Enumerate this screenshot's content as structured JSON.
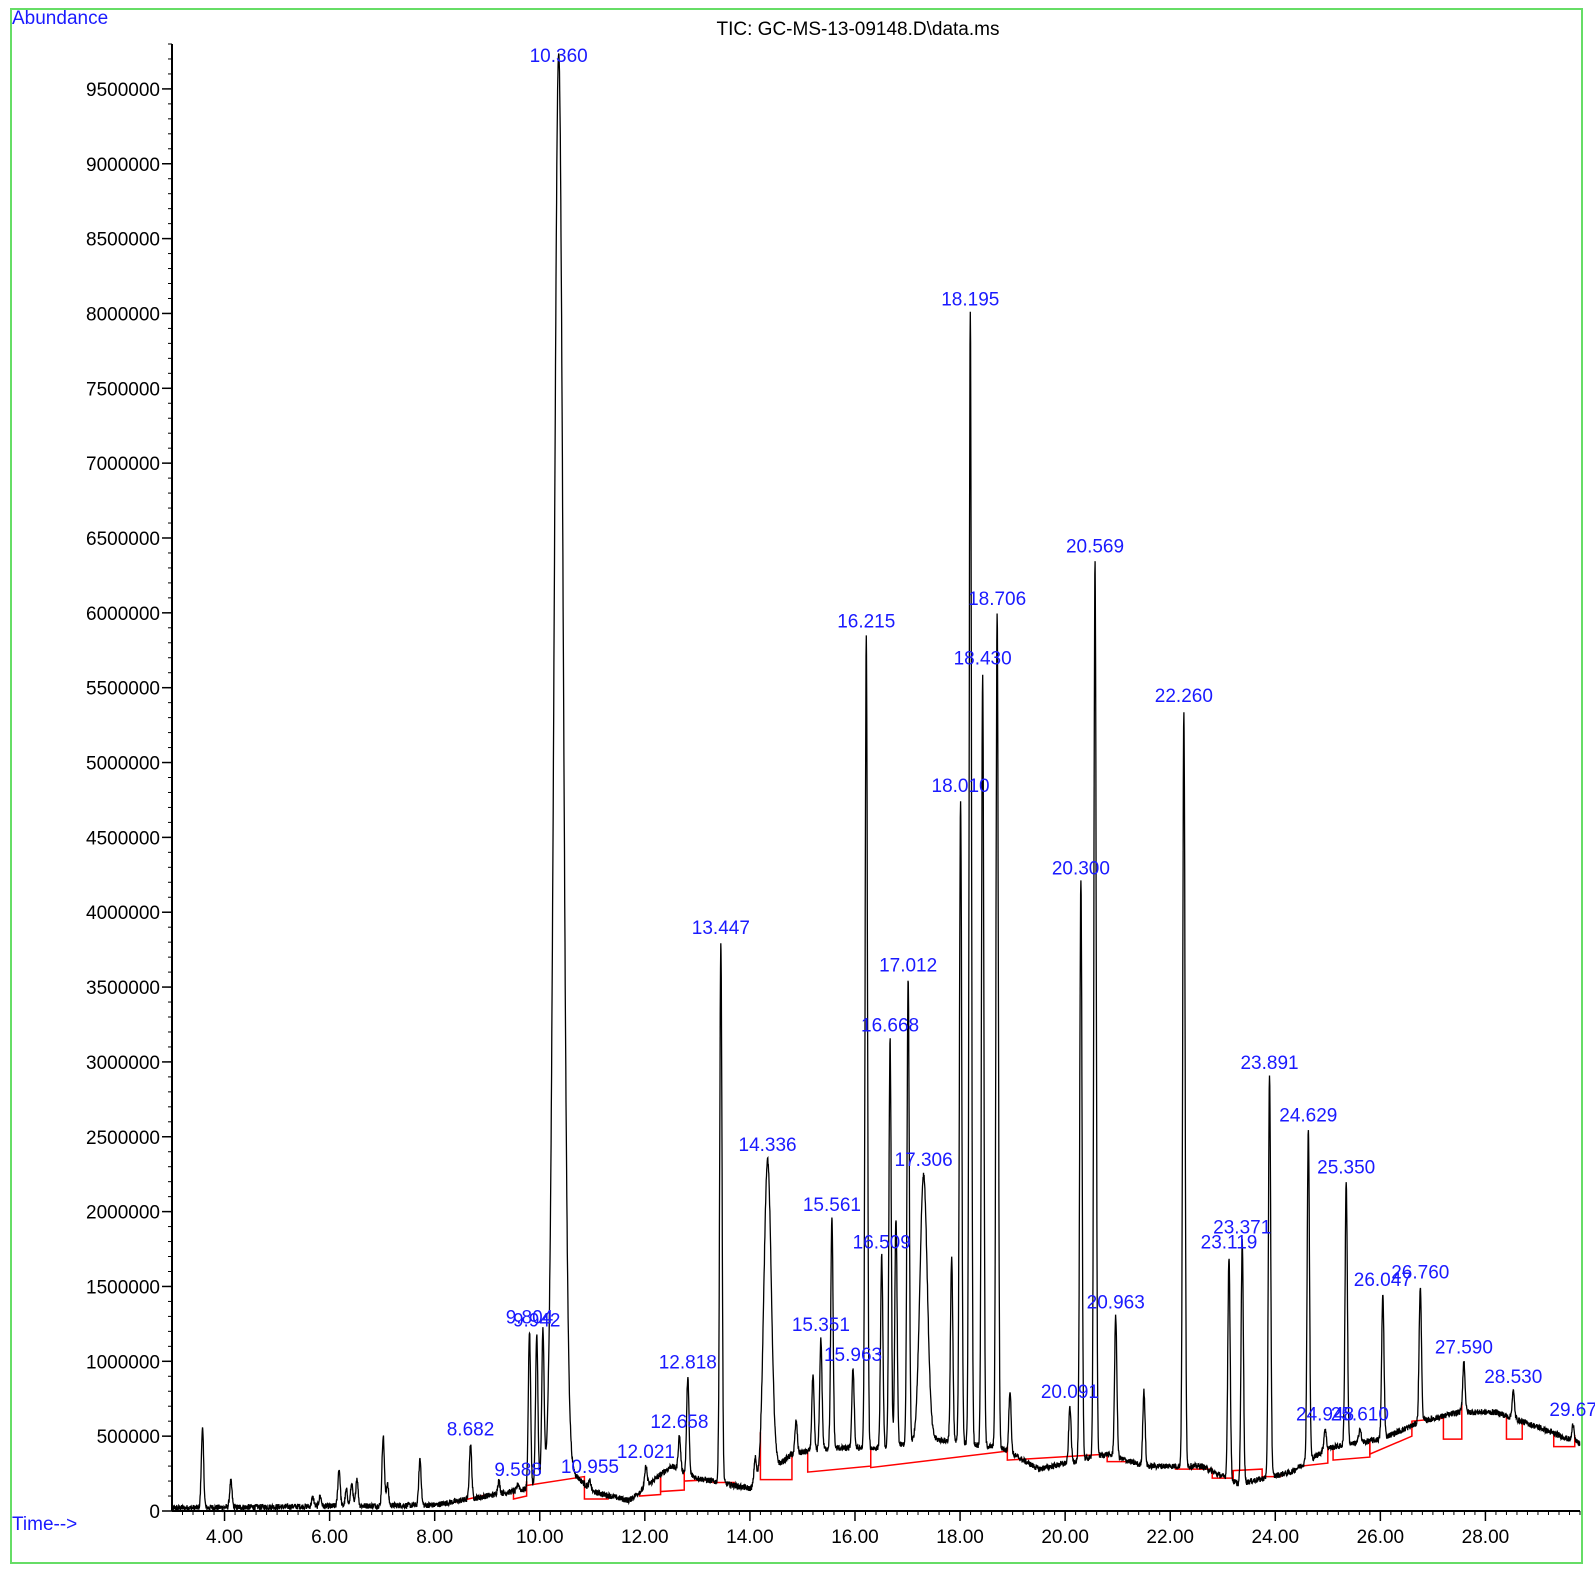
{
  "chart_data": {
    "type": "line",
    "title": "TIC: GC-MS-13-09148.D\\data.ms",
    "ylabel": "Abundance",
    "xlabel": "Time-->",
    "xlim": [
      3.0,
      29.8
    ],
    "ylim": [
      0,
      9800000
    ],
    "x_ticks": [
      4,
      6,
      8,
      10,
      12,
      14,
      16,
      18,
      20,
      22,
      24,
      26,
      28
    ],
    "x_tick_labels": [
      "4.00",
      "6.00",
      "8.00",
      "10.00",
      "12.00",
      "14.00",
      "16.00",
      "18.00",
      "20.00",
      "22.00",
      "24.00",
      "26.00",
      "28.00"
    ],
    "y_ticks": [
      0,
      500000,
      1000000,
      1500000,
      2000000,
      2500000,
      3000000,
      3500000,
      4000000,
      4500000,
      5000000,
      5500000,
      6000000,
      6500000,
      7000000,
      7500000,
      8000000,
      8500000,
      9000000,
      9500000
    ],
    "y_tick_labels": [
      "0",
      "500000",
      "1000000",
      "1500000",
      "2000000",
      "2500000",
      "3000000",
      "3500000",
      "4000000",
      "4500000",
      "5000000",
      "5500000",
      "6000000",
      "6500000",
      "7000000",
      "7500000",
      "8000000",
      "8500000",
      "9000000",
      "9500000"
    ],
    "grid": false,
    "colors": {
      "trace": "#000000",
      "baseline": "#ff0000",
      "labels": "#1a1aff",
      "frame": "#66dd66"
    },
    "peaks": [
      {
        "rt": 3.58,
        "height": 550000,
        "label": ""
      },
      {
        "rt": 4.12,
        "height": 200000,
        "label": ""
      },
      {
        "rt": 5.68,
        "height": 90000,
        "label": ""
      },
      {
        "rt": 5.82,
        "height": 100000,
        "label": ""
      },
      {
        "rt": 6.18,
        "height": 280000,
        "label": ""
      },
      {
        "rt": 6.32,
        "height": 140000,
        "label": ""
      },
      {
        "rt": 6.42,
        "height": 180000,
        "label": ""
      },
      {
        "rt": 6.52,
        "height": 220000,
        "label": ""
      },
      {
        "rt": 7.02,
        "height": 500000,
        "label": ""
      },
      {
        "rt": 7.1,
        "height": 180000,
        "label": ""
      },
      {
        "rt": 7.72,
        "height": 350000,
        "label": ""
      },
      {
        "rt": 8.682,
        "height": 450000,
        "label": "8.682"
      },
      {
        "rt": 9.22,
        "height": 200000,
        "label": ""
      },
      {
        "rt": 9.588,
        "height": 180000,
        "label": "9.588"
      },
      {
        "rt": 9.804,
        "height": 1200000,
        "label": "9.804"
      },
      {
        "rt": 9.942,
        "height": 1180000,
        "label": "9.942"
      },
      {
        "rt": 10.06,
        "height": 1200000,
        "label": ""
      },
      {
        "rt": 10.36,
        "height": 9750000,
        "label": "10.360"
      },
      {
        "rt": 10.955,
        "height": 200000,
        "label": "10.955"
      },
      {
        "rt": 12.021,
        "height": 300000,
        "label": "12.021"
      },
      {
        "rt": 12.658,
        "height": 500000,
        "label": "12.658"
      },
      {
        "rt": 12.818,
        "height": 900000,
        "label": "12.818"
      },
      {
        "rt": 13.447,
        "height": 3800000,
        "label": "13.447"
      },
      {
        "rt": 14.1,
        "height": 350000,
        "label": ""
      },
      {
        "rt": 14.336,
        "height": 2350000,
        "label": "14.336"
      },
      {
        "rt": 14.88,
        "height": 600000,
        "label": ""
      },
      {
        "rt": 15.2,
        "height": 900000,
        "label": ""
      },
      {
        "rt": 15.351,
        "height": 1150000,
        "label": "15.351"
      },
      {
        "rt": 15.561,
        "height": 1950000,
        "label": "15.561"
      },
      {
        "rt": 15.963,
        "height": 950000,
        "label": "15.963"
      },
      {
        "rt": 16.215,
        "height": 5850000,
        "label": "16.215"
      },
      {
        "rt": 16.509,
        "height": 1700000,
        "label": "16.509"
      },
      {
        "rt": 16.668,
        "height": 3150000,
        "label": "16.668"
      },
      {
        "rt": 16.78,
        "height": 1950000,
        "label": ""
      },
      {
        "rt": 17.012,
        "height": 3550000,
        "label": "17.012"
      },
      {
        "rt": 17.306,
        "height": 2250000,
        "label": "17.306"
      },
      {
        "rt": 17.84,
        "height": 1700000,
        "label": ""
      },
      {
        "rt": 18.01,
        "height": 4750000,
        "label": "18.010"
      },
      {
        "rt": 18.195,
        "height": 8000000,
        "label": "18.195"
      },
      {
        "rt": 18.43,
        "height": 5600000,
        "label": "18.430"
      },
      {
        "rt": 18.706,
        "height": 6000000,
        "label": "18.706"
      },
      {
        "rt": 18.95,
        "height": 800000,
        "label": ""
      },
      {
        "rt": 20.091,
        "height": 700000,
        "label": "20.091"
      },
      {
        "rt": 20.3,
        "height": 4200000,
        "label": "20.300"
      },
      {
        "rt": 20.569,
        "height": 6350000,
        "label": "20.569"
      },
      {
        "rt": 20.963,
        "height": 1300000,
        "label": "20.963"
      },
      {
        "rt": 21.5,
        "height": 800000,
        "label": ""
      },
      {
        "rt": 22.26,
        "height": 5350000,
        "label": "22.260"
      },
      {
        "rt": 23.119,
        "height": 1700000,
        "label": "23.119"
      },
      {
        "rt": 23.371,
        "height": 1800000,
        "label": "23.371"
      },
      {
        "rt": 23.891,
        "height": 2900000,
        "label": "23.891"
      },
      {
        "rt": 24.629,
        "height": 2550000,
        "label": "24.629"
      },
      {
        "rt": 24.948,
        "height": 550000,
        "label": "24.948"
      },
      {
        "rt": 25.35,
        "height": 2200000,
        "label": "25.350"
      },
      {
        "rt": 25.61,
        "height": 550000,
        "label": "25.610"
      },
      {
        "rt": 26.047,
        "height": 1450000,
        "label": "26.047"
      },
      {
        "rt": 26.76,
        "height": 1500000,
        "label": "26.760"
      },
      {
        "rt": 27.59,
        "height": 1000000,
        "label": "27.590"
      },
      {
        "rt": 28.53,
        "height": 800000,
        "label": "28.530"
      },
      {
        "rt": 29.67,
        "height": 580000,
        "label": "29.67"
      }
    ],
    "integration_baselines": [
      {
        "start": 8.4,
        "end": 9.0,
        "y_start": 60000,
        "y_end": 110000
      },
      {
        "start": 9.5,
        "end": 9.75,
        "y_start": 80000,
        "y_end": 100000
      },
      {
        "start": 9.75,
        "end": 10.85,
        "y_start": 170000,
        "y_end": 230000
      },
      {
        "start": 10.85,
        "end": 11.3,
        "y_start": 80000,
        "y_end": 80000
      },
      {
        "start": 11.9,
        "end": 12.3,
        "y_start": 100000,
        "y_end": 110000
      },
      {
        "start": 12.3,
        "end": 12.75,
        "y_start": 130000,
        "y_end": 140000
      },
      {
        "start": 12.75,
        "end": 13.3,
        "y_start": 200000,
        "y_end": 210000
      },
      {
        "start": 13.3,
        "end": 13.7,
        "y_start": 190000,
        "y_end": 190000
      },
      {
        "start": 14.2,
        "end": 14.8,
        "y_start": 210000,
        "y_end": 210000
      },
      {
        "start": 15.1,
        "end": 16.3,
        "y_start": 260000,
        "y_end": 300000
      },
      {
        "start": 16.3,
        "end": 18.9,
        "y_start": 290000,
        "y_end": 400000
      },
      {
        "start": 18.9,
        "end": 20.8,
        "y_start": 340000,
        "y_end": 380000
      },
      {
        "start": 20.8,
        "end": 21.3,
        "y_start": 330000,
        "y_end": 330000
      },
      {
        "start": 22.1,
        "end": 22.8,
        "y_start": 280000,
        "y_end": 280000
      },
      {
        "start": 22.8,
        "end": 23.2,
        "y_start": 220000,
        "y_end": 220000
      },
      {
        "start": 23.2,
        "end": 23.75,
        "y_start": 270000,
        "y_end": 280000
      },
      {
        "start": 23.75,
        "end": 24.1,
        "y_start": 230000,
        "y_end": 230000
      },
      {
        "start": 24.5,
        "end": 25.0,
        "y_start": 300000,
        "y_end": 320000
      },
      {
        "start": 25.1,
        "end": 25.8,
        "y_start": 340000,
        "y_end": 360000
      },
      {
        "start": 25.8,
        "end": 26.6,
        "y_start": 380000,
        "y_end": 500000
      },
      {
        "start": 26.6,
        "end": 27.2,
        "y_start": 600000,
        "y_end": 620000
      },
      {
        "start": 27.2,
        "end": 27.55,
        "y_start": 480000,
        "y_end": 480000
      },
      {
        "start": 28.4,
        "end": 28.7,
        "y_start": 480000,
        "y_end": 480000
      },
      {
        "start": 29.3,
        "end": 29.7,
        "y_start": 430000,
        "y_end": 430000
      }
    ]
  }
}
